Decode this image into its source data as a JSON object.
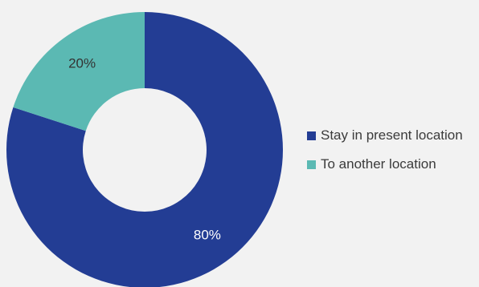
{
  "chart_data": {
    "type": "pie",
    "style": "donut",
    "categories": [
      "Stay in present location",
      "To another location"
    ],
    "values": [
      80,
      20
    ],
    "labels": [
      "80%",
      "20%"
    ],
    "colors": [
      "#233d94",
      "#5bb9b3"
    ],
    "legend_position": "right",
    "title": ""
  }
}
